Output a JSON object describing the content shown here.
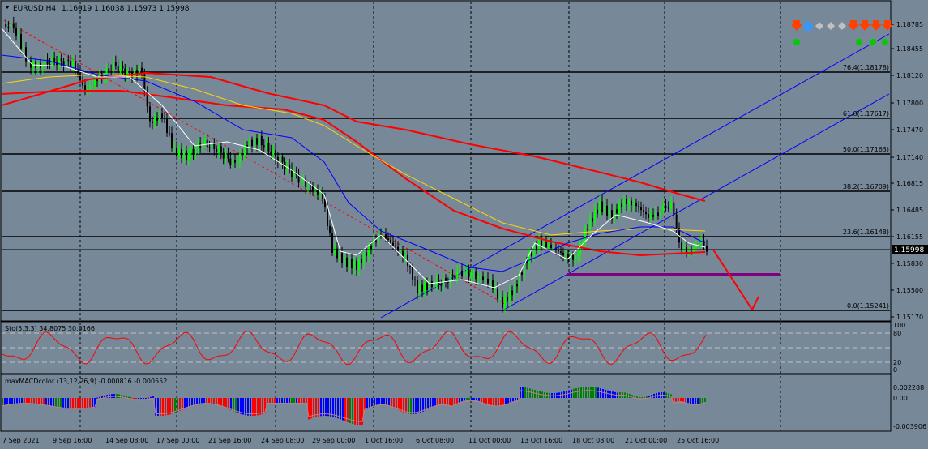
{
  "header": {
    "symbol": "EURUSD,H4",
    "ohlc": "1.16019 1.16038 1.15973 1.15998"
  },
  "price_axis": {
    "ticks": [
      "1.18785",
      "1.18455",
      "1.18120",
      "1.17800",
      "1.17470",
      "1.17140",
      "1.16815",
      "1.16485",
      "1.16155",
      "1.15830",
      "1.15500",
      "1.15170"
    ],
    "current_price": "1.15998"
  },
  "fibo": {
    "levels": [
      {
        "label": "76.4(1.18178)"
      },
      {
        "label": "61.8(1.17617)"
      },
      {
        "label": "50.0(1.17163)"
      },
      {
        "label": "38.2(1.16709)"
      },
      {
        "label": "23.6(1.16148)"
      },
      {
        "label": "0.0(1.15241)"
      }
    ]
  },
  "stoch": {
    "title": "Sto(5,3,3) 34.8075 30.0166",
    "axis": [
      "100",
      "80",
      "20",
      "0"
    ]
  },
  "macd": {
    "title": "maxMACDcolor (13,12,26,9) -0.000816 -0.000552",
    "axis": [
      "0.002288",
      "0.00",
      "-0.003906"
    ]
  },
  "time_axis": [
    "7 Sep 2021",
    "9 Sep 16:00",
    "14 Sep 08:00",
    "17 Sep 00:00",
    "21 Sep 16:00",
    "24 Sep 08:00",
    "29 Sep 00:00",
    "1 Oct 16:00",
    "6 Oct 08:00",
    "11 Oct 00:00",
    "13 Oct 16:00",
    "18 Oct 08:00",
    "21 Oct 00:00",
    "25 Oct 16:00"
  ],
  "colors": {
    "background": "#778899",
    "bull_candle": "#00ff00",
    "bear_candle": "#000000",
    "ma_red": "#ff0000",
    "ma_blue": "#0000ff",
    "ma_yellow": "#ffd700",
    "ma_white": "#ffffff",
    "channel": "#0000ff",
    "support_line": "#800080",
    "forecast_arrow": "#ff0000",
    "macd_up": "#0000ff",
    "macd_down": "#ff0000",
    "macd_neutral": "#008000"
  },
  "signals": {
    "arrows": [
      "down",
      "up",
      "neutral",
      "neutral",
      "neutral",
      "down",
      "down",
      "down",
      "down"
    ],
    "dots": [
      "green",
      "green",
      "green",
      "green"
    ]
  }
}
